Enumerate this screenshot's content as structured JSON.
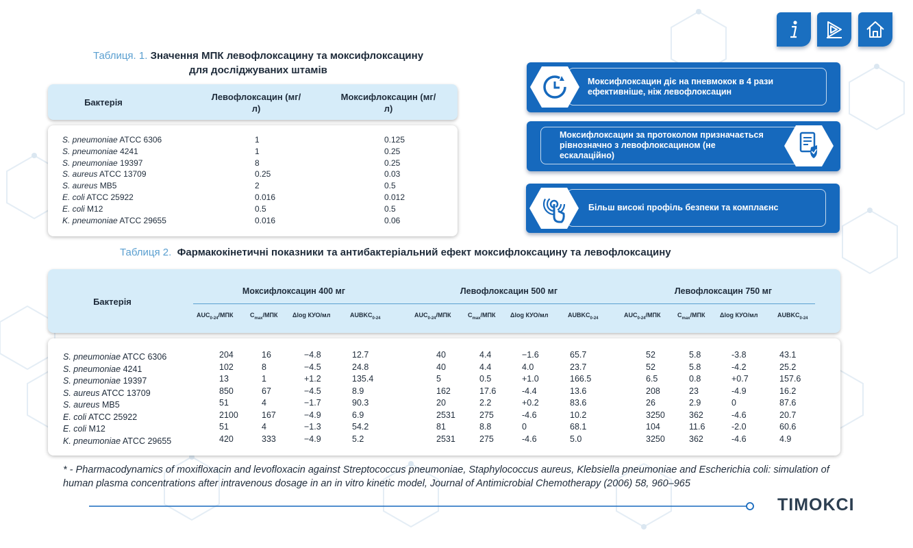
{
  "nav": {
    "info_icon": "info-icon",
    "next_icon": "play-next-icon",
    "home_icon": "home-icon"
  },
  "table1": {
    "label": "Таблиця. 1.",
    "title_line1": "Значення МПК левофлоксацину та моксифлоксацину",
    "title_line2": "для досліджуваних штамів",
    "headers": [
      "Бактерія",
      "Левофлоксацин (мг/л)",
      "Моксифлоксацин (мг/л)"
    ],
    "rows": [
      {
        "sp": "S. pneumoniae",
        "strain": "ATCC 6306",
        "levo": "1",
        "moxi": "0.125"
      },
      {
        "sp": "S. pneumoniae",
        "strain": "4241",
        "levo": "1",
        "moxi": "0.25"
      },
      {
        "sp": "S. pneumoniae",
        "strain": "19397",
        "levo": "8",
        "moxi": "0.25"
      },
      {
        "sp": "S. aureus",
        "strain": "ATCC 13709",
        "levo": "0.25",
        "moxi": "0.03"
      },
      {
        "sp": "S. aureus",
        "strain": "MB5",
        "levo": "2",
        "moxi": "0.5"
      },
      {
        "sp": "E. coli",
        "strain": "ATCC 25922",
        "levo": "0.016",
        "moxi": "0.012"
      },
      {
        "sp": "E. coli",
        "strain": "M12",
        "levo": "0.5",
        "moxi": "0.5"
      },
      {
        "sp": "K. pneumoniae",
        "strain": "ATCC 29655",
        "levo": "0.016",
        "moxi": "0.06"
      }
    ]
  },
  "info_boxes": [
    {
      "text": "Моксифлоксацин діє на пневмокок в 4 рази ефективніше, ніж левофлоксацин",
      "icon": "refresh-clock-icon"
    },
    {
      "text": "Моксифлоксацин за протоколом призначається рівнозначно з левофлоксацином (не ескалаційно)",
      "icon": "document-check-icon"
    },
    {
      "text": "Більш високі профіль безпеки та комплаєнс",
      "icon": "touch-tap-icon"
    }
  ],
  "table2": {
    "label": "Таблиця 2.",
    "title": "Фармакокінетичні показники та антибактеріальний ефект моксифлоксацину та левофлоксацину",
    "col0": "Бактерія",
    "groups": [
      "Моксифлоксацин 400 мг",
      "Левофлоксацин 500 мг",
      "Левофлоксацин 750 мг"
    ],
    "sub_headers": [
      {
        "main": "AUC",
        "sub": "0-24",
        "rest": "/МПК"
      },
      {
        "main": "C",
        "sub": "max",
        "rest": "/МПК"
      },
      {
        "main": "Δlog КУО/мл",
        "sub": "",
        "rest": ""
      },
      {
        "main": "AUBKC",
        "sub": "0-24",
        "rest": ""
      }
    ],
    "rows": [
      {
        "sp": "S. pneumoniae",
        "strain": "ATCC 6306",
        "v": [
          "204",
          "16",
          "−4.8",
          "12.7",
          "40",
          "4.4",
          "−1.6",
          "65.7",
          "52",
          "5.8",
          "-3.8",
          "43.1"
        ]
      },
      {
        "sp": "S. pneumoniae",
        "strain": "4241",
        "v": [
          "102",
          "8",
          "−4.5",
          "24.8",
          "40",
          "4.4",
          "4.0",
          "23.7",
          "52",
          "5.8",
          "-4.2",
          "25.2"
        ]
      },
      {
        "sp": "S. pneumoniae",
        "strain": "19397",
        "v": [
          "13",
          "1",
          "+1.2",
          "135.4",
          "5",
          "0.5",
          "+1.0",
          "166.5",
          "6.5",
          "0.8",
          "+0.7",
          "157.6"
        ]
      },
      {
        "sp": "S. aureus",
        "strain": "ATCC 13709",
        "v": [
          "850",
          "67",
          "−4.5",
          "8.9",
          "162",
          "17.6",
          "-4.4",
          "13.6",
          "208",
          "23",
          "-4.9",
          "16.2"
        ]
      },
      {
        "sp": "S. aureus",
        "strain": "MB5",
        "v": [
          "51",
          "4",
          "−1.7",
          "90.3",
          "20",
          "2.2",
          "+0.2",
          "83.6",
          "26",
          "2.9",
          "0",
          "87.6"
        ]
      },
      {
        "sp": "E. coli",
        "strain": "ATCC 25922",
        "v": [
          "2100",
          "167",
          "−4.9",
          "6.9",
          "2531",
          "275",
          "-4.6",
          "10.2",
          "3250",
          "362",
          "-4.6",
          "20.7"
        ]
      },
      {
        "sp": "E. coli",
        "strain": "M12",
        "v": [
          "51",
          "4",
          "−1.3",
          "54.2",
          "81",
          "8.8",
          "0",
          "68.1",
          "104",
          "11.6",
          "-2.0",
          "60.6"
        ]
      },
      {
        "sp": "K. pneumoniae",
        "strain": "ATCC 29655",
        "v": [
          "420",
          "333",
          "−4.9",
          "5.2",
          "2531",
          "275",
          "-4.6",
          "5.0",
          "3250",
          "362",
          "-4.6",
          "4.9"
        ]
      }
    ]
  },
  "footnote": "* - Pharmacodynamics of moxifloxacin and levofloxacin against Streptococcus pneumoniae, Staphylococcus aureus, Klebsiella pneumoniae and Escherichia coli: simulation of human plasma concentrations after intravenous dosage in an in vitro kinetic model, Journal of Antimicrobial Chemotherapy (2006) 58, 960–965",
  "brand": "TIMOKCI",
  "colors": {
    "accent": "#1669bd",
    "header_bg": "#d6ecf9",
    "label": "#5a9fd0"
  }
}
